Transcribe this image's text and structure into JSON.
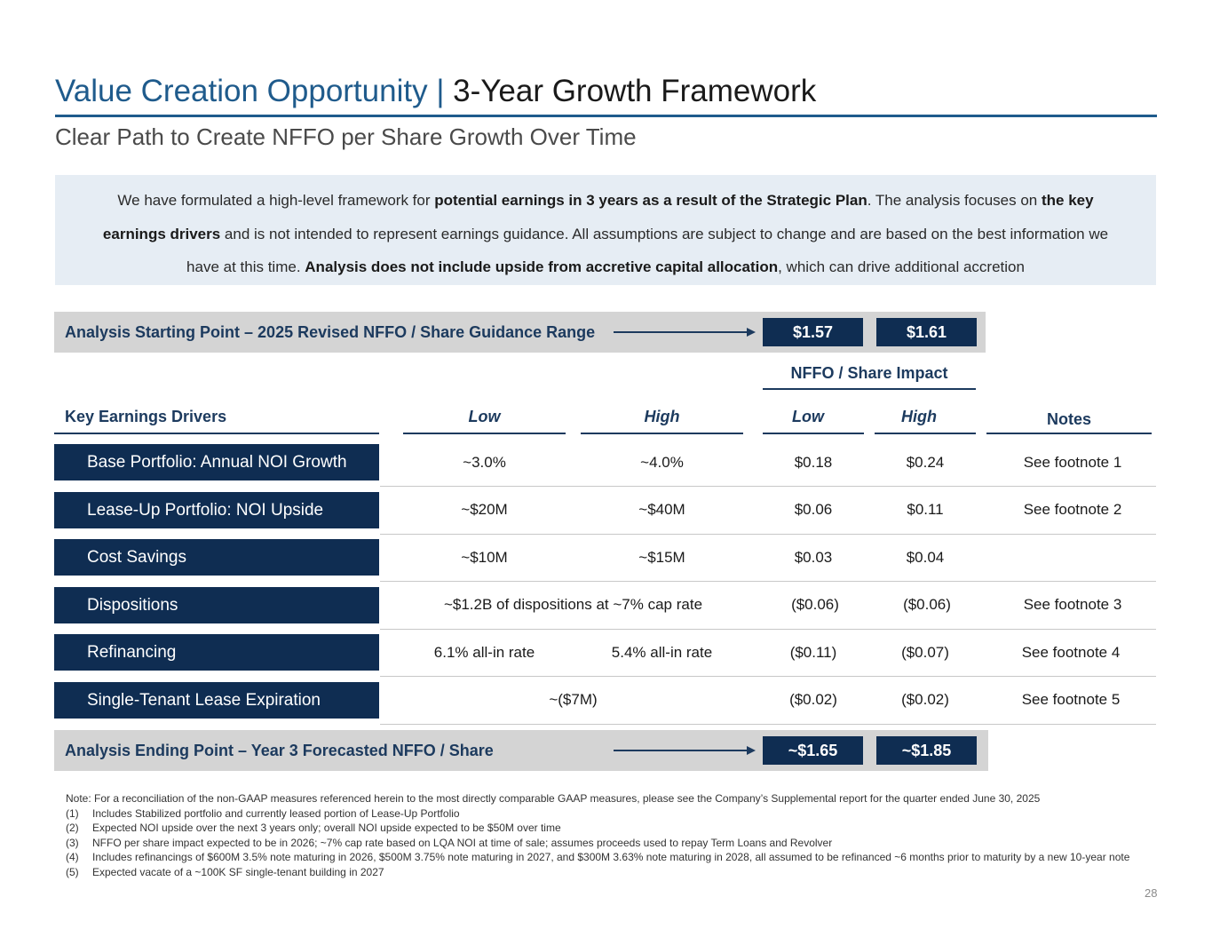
{
  "title": {
    "part1": "Value Creation Opportunity | ",
    "part2": "3-Year Growth Framework"
  },
  "subtitle": "Clear Path to Create NFFO per Share Growth Over Time",
  "intro": {
    "s1": "We have formulated a high-level framework for ",
    "b1": "potential earnings in 3 years as a result of the Strategic Plan",
    "s2": ". The analysis focuses on ",
    "b2": "the key earnings drivers",
    "s3": " and is not intended to represent earnings guidance. All assumptions are subject to change and are based on the best information we have at this time. ",
    "b3": "Analysis does not include upside from accretive capital allocation",
    "s4": ", which can drive additional accretion"
  },
  "start_bar": {
    "label": "Analysis Starting Point – 2025 Revised NFFO / Share Guidance Range",
    "low": "$1.57",
    "high": "$1.61"
  },
  "headers": {
    "impact_group": "NFFO / Share Impact",
    "drivers": "Key Earnings Drivers",
    "low": "Low",
    "high": "High",
    "impact_low": "Low",
    "impact_high": "High",
    "notes": "Notes"
  },
  "rows": [
    {
      "label": "Base Portfolio: Annual NOI Growth",
      "low": "~3.0%",
      "high": "~4.0%",
      "impact_low": "$0.18",
      "impact_high": "$0.24",
      "note": "See footnote 1"
    },
    {
      "label": "Lease-Up Portfolio: NOI Upside",
      "low": "~$20M",
      "high": "~$40M",
      "impact_low": "$0.06",
      "impact_high": "$0.11",
      "note": "See footnote 2"
    },
    {
      "label": "Cost Savings",
      "low": "~$10M",
      "high": "~$15M",
      "impact_low": "$0.03",
      "impact_high": "$0.04",
      "note": ""
    },
    {
      "label": "Dispositions",
      "span": "~$1.2B of dispositions at ~7% cap rate",
      "impact_low": "($0.06)",
      "impact_high": "($0.06)",
      "note": "See footnote 3"
    },
    {
      "label": "Refinancing",
      "low": "6.1% all-in rate",
      "high": "5.4% all-in rate",
      "impact_low": "($0.11)",
      "impact_high": "($0.07)",
      "note": "See footnote 4"
    },
    {
      "label": "Single-Tenant Lease Expiration",
      "span": "~($7M)",
      "impact_low": "($0.02)",
      "impact_high": "($0.02)",
      "note": "See footnote 5"
    }
  ],
  "end_bar": {
    "label": "Analysis Ending Point – Year 3 Forecasted NFFO / Share",
    "low": "~$1.65",
    "high": "~$1.85"
  },
  "footnotes": {
    "note": "Note: For a reconciliation of the non-GAAP measures referenced herein to the most directly comparable GAAP measures, please see the Company’s Supplemental report for the quarter ended June 30, 2025",
    "items": [
      {
        "num": "(1)",
        "text": "Includes Stabilized portfolio and currently leased portion of Lease-Up Portfolio"
      },
      {
        "num": "(2)",
        "text": "Expected NOI upside over the next 3 years only; overall NOI upside expected to be $50M over time"
      },
      {
        "num": "(3)",
        "text": "NFFO per share impact expected to be in 2026; ~7% cap rate based on LQA NOI at time of sale; assumes proceeds used to repay Term Loans and Revolver"
      },
      {
        "num": "(4)",
        "text": "Includes refinancings of $600M 3.5% note maturing in 2026, $500M 3.75% note maturing in 2027, and $300M 3.63% note maturing in 2028, all assumed to be refinanced ~6 months prior to maturity by a new 10-year note"
      },
      {
        "num": "(5)",
        "text": "Expected vacate of a ~100K SF single-tenant building in 2027"
      }
    ]
  },
  "page_number": "28"
}
